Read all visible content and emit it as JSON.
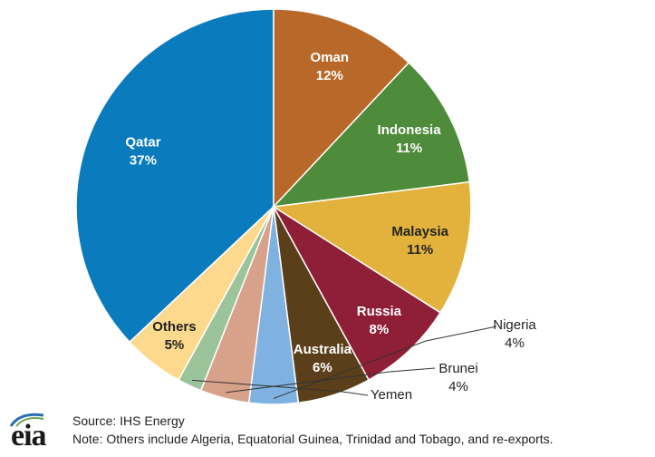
{
  "chart_data": {
    "type": "pie",
    "title": "",
    "categories": [
      "Qatar",
      "Oman",
      "Indonesia",
      "Malaysia",
      "Russia",
      "Australia",
      "Nigeria",
      "Brunei",
      "Yemen",
      "Others"
    ],
    "values": [
      37,
      12,
      11,
      11,
      8,
      6,
      4,
      4,
      2,
      5
    ],
    "value_labels": [
      "37%",
      "12%",
      "11%",
      "11%",
      "8%",
      "6%",
      "4%",
      "4%",
      "2%",
      "5%"
    ],
    "colors": [
      "#0a7bbd",
      "#b8692a",
      "#4e8b3a",
      "#e3b23c",
      "#8e1f36",
      "#5a3f1a",
      "#7fb2e0",
      "#d7a18a",
      "#9cc49a",
      "#fcd98c"
    ],
    "label_colors": [
      "#ffffff",
      "#ffffff",
      "#ffffff",
      "#222222",
      "#ffffff",
      "#ffffff",
      "#222222",
      "#222222",
      "#222222",
      "#222222"
    ]
  },
  "footer": {
    "logo_text": "eia",
    "source": "Source: IHS Energy",
    "note": "Note: Others include Algeria, Equatorial Guinea, Trinidad and Tobago, and re-exports."
  },
  "logo_icon": "eia-logo-arc-icon"
}
